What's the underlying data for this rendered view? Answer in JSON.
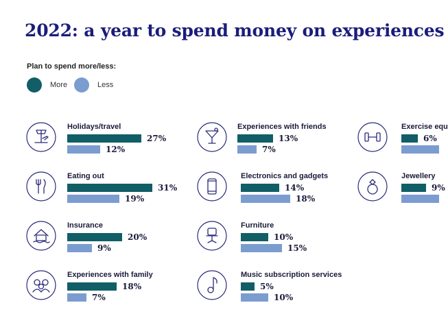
{
  "colors": {
    "title": "#1b1d7a",
    "more": "#115e67",
    "less": "#7b9ccf",
    "icon": "#2a2a7a"
  },
  "legend_title": "Plan to spend more/less:",
  "chart_data": {
    "type": "bar",
    "title": "2022: a year to spend money on experiences",
    "subtitle": "Plan to spend more/less:",
    "unit": "%",
    "series_names": [
      "More",
      "Less"
    ],
    "categories": [
      {
        "label": "Holidays/travel",
        "icon": "airport-icon",
        "more": 27,
        "less": 12
      },
      {
        "label": "Eating out",
        "icon": "cutlery-icon",
        "more": 31,
        "less": 19
      },
      {
        "label": "Insurance",
        "icon": "house-flood-icon",
        "more": 20,
        "less": 9
      },
      {
        "label": "Experiences with family",
        "icon": "family-icon",
        "more": 18,
        "less": 7
      },
      {
        "label": "Experiences with friends",
        "icon": "cocktail-icon",
        "more": 13,
        "less": 7
      },
      {
        "label": "Electronics and gadgets",
        "icon": "smartphone-icon",
        "more": 14,
        "less": 18
      },
      {
        "label": "Furniture",
        "icon": "chair-icon",
        "more": 10,
        "less": 15
      },
      {
        "label": "Music subscription services",
        "icon": "music-note-icon",
        "more": 5,
        "less": 10
      },
      {
        "label": "Exercise equ",
        "icon": "dumbbell-icon",
        "more": 6,
        "less": null
      },
      {
        "label": "Jewellery",
        "icon": "ring-icon",
        "more": 9,
        "less": null
      }
    ]
  }
}
